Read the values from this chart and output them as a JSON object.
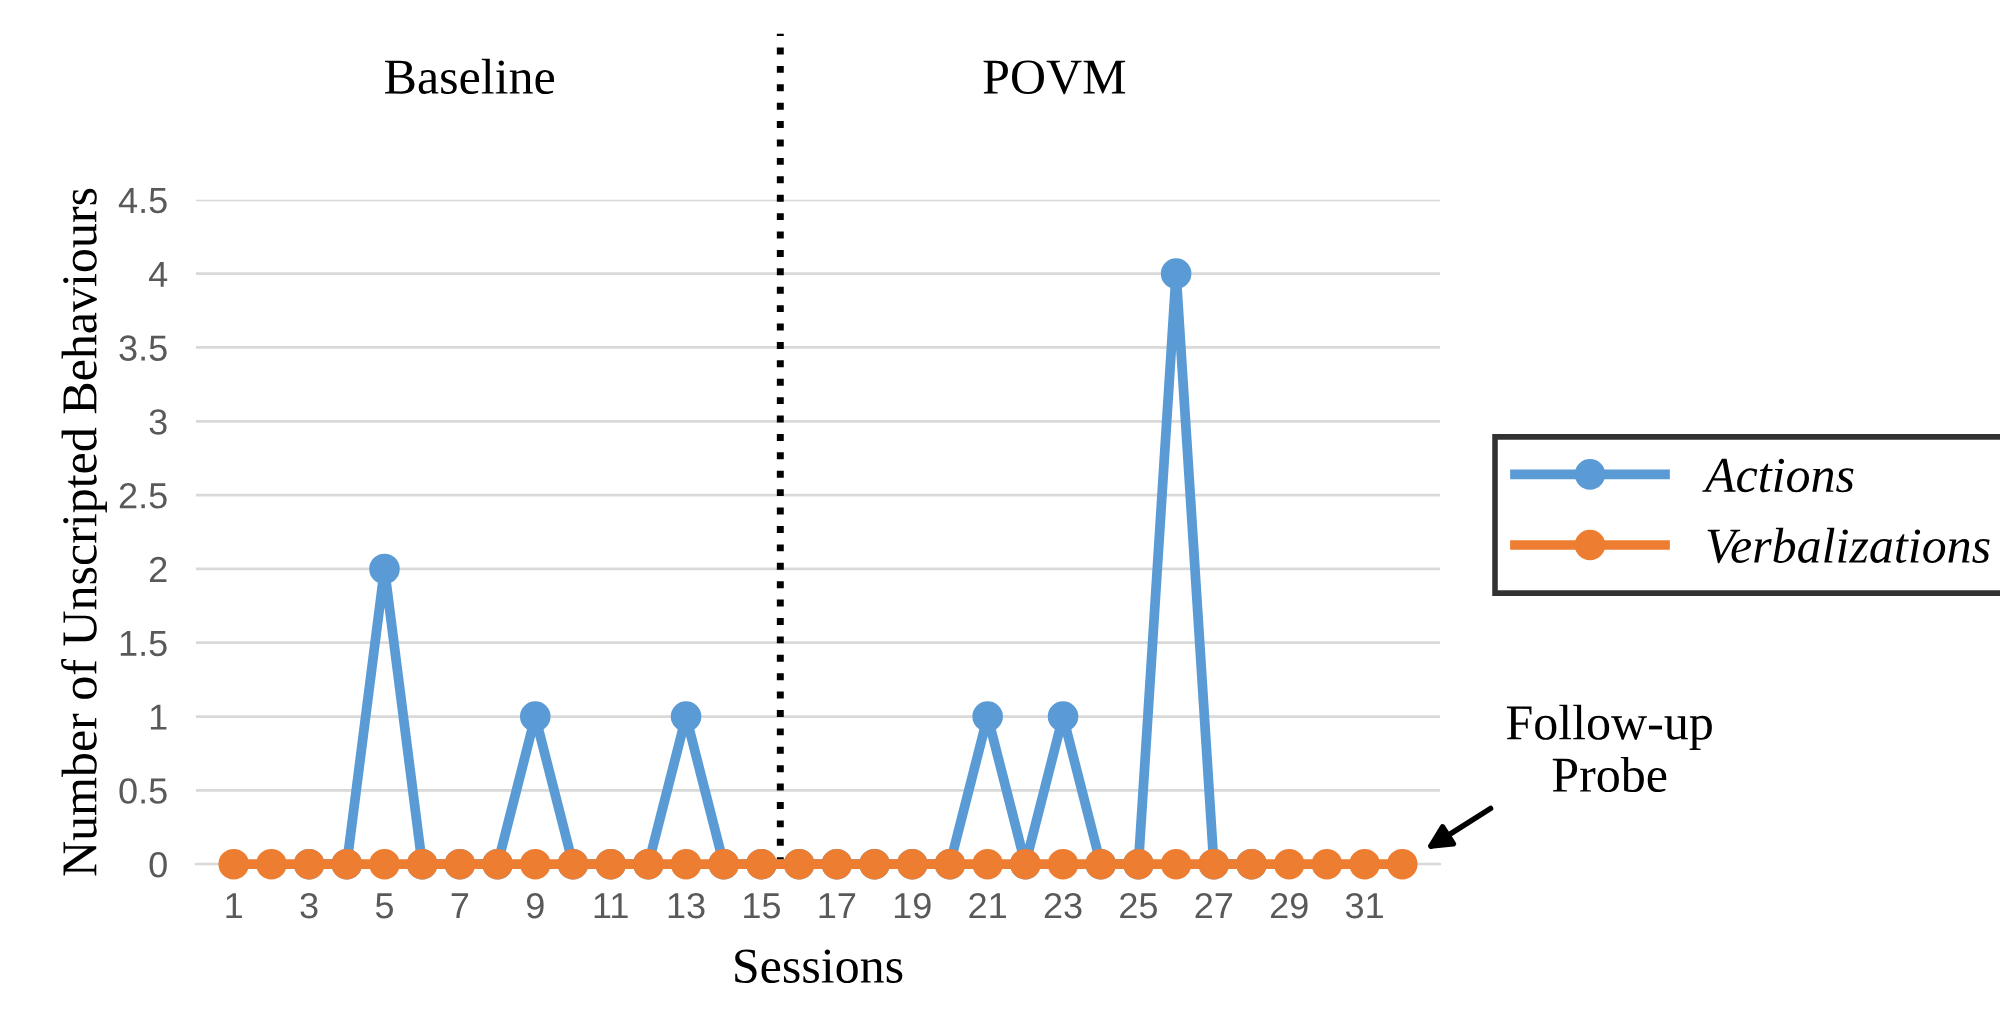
{
  "chart_data": {
    "type": "line",
    "xlabel": "Sessions",
    "ylabel": "Number of Unscripted Behaviours",
    "x": [
      1,
      2,
      3,
      4,
      5,
      6,
      7,
      8,
      9,
      10,
      11,
      12,
      13,
      14,
      15,
      16,
      17,
      18,
      19,
      20,
      21,
      22,
      23,
      24,
      25,
      26,
      27,
      28,
      29,
      30,
      31,
      32
    ],
    "series": [
      {
        "name": "Actions",
        "color": "#5b9bd5",
        "values": [
          null,
          null,
          0,
          0,
          2,
          0,
          0,
          0,
          1,
          0,
          0,
          0,
          1,
          0,
          0,
          0,
          0,
          0,
          0,
          0,
          1,
          0,
          1,
          0,
          0,
          4,
          0,
          0,
          null,
          null,
          null,
          null
        ]
      },
      {
        "name": "Verbalizations",
        "color": "#ed7d31",
        "values": [
          0,
          0,
          0,
          0,
          0,
          0,
          0,
          0,
          0,
          0,
          0,
          0,
          0,
          0,
          0,
          0,
          0,
          0,
          0,
          0,
          0,
          0,
          0,
          0,
          0,
          0,
          0,
          0,
          0,
          0,
          0,
          0
        ]
      }
    ],
    "xlim": [
      0,
      33
    ],
    "xticks": [
      1,
      3,
      5,
      7,
      9,
      11,
      13,
      15,
      17,
      19,
      21,
      23,
      25,
      27,
      29,
      31
    ],
    "ylim": [
      0,
      4.5
    ],
    "yticks": [
      0,
      0.5,
      1,
      1.5,
      2,
      2.5,
      3,
      3.5,
      4,
      4.5
    ],
    "ref_lines": [
      {
        "axis": "x",
        "value": 15.5,
        "color": "#000000",
        "line_style": "dotted"
      }
    ],
    "annotations": [
      "Baseline",
      "POVM",
      {
        "text": "Follow-up\nProbe",
        "x": 32,
        "y": 0
      }
    ],
    "grid": "y",
    "legend": "right",
    "marker": "circle",
    "line_style": "solid"
  }
}
